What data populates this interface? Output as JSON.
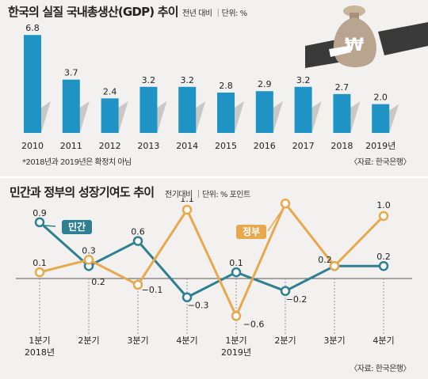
{
  "chart_data": [
    {
      "type": "bar",
      "title": "한국의 실질 국내총생산(GDP) 추이",
      "unit_note": "전년 대비 ｜단위: %",
      "categories": [
        "2010",
        "2011",
        "2012",
        "2013",
        "2014",
        "2015",
        "2016",
        "2017",
        "2018",
        "2019년"
      ],
      "values": [
        6.8,
        3.7,
        2.4,
        3.2,
        3.2,
        2.8,
        2.9,
        3.2,
        2.7,
        2.0
      ],
      "value_labels": [
        "6.8",
        "3.7",
        "2.4",
        "3.2",
        "3.2",
        "2.8",
        "2.9",
        "3.2",
        "2.7",
        "2.0"
      ],
      "footnote": "*2018년과 2019년은 확정치 아님",
      "source": "〈자료: 한국은행〉",
      "colors": {
        "bar": "#1f93c4",
        "shadow": "#c8c8c8"
      }
    },
    {
      "type": "line",
      "title": "민간과 정부의 성장기여도 추이",
      "unit_note": "전기대비 ｜단위: % 포인트",
      "categories": [
        "1분기",
        "2분기",
        "3분기",
        "4분기",
        "1분기",
        "2분기",
        "3분기",
        "4분기"
      ],
      "year_labels": [
        "2018년",
        "",
        "",
        "",
        "2019년",
        "",
        "",
        ""
      ],
      "series": [
        {
          "name": "민간",
          "values": [
            0.9,
            0.2,
            0.6,
            -0.3,
            0.1,
            -0.2,
            0.2,
            0.2
          ],
          "labels": [
            "0.9",
            "0.2",
            "0.6",
            "−0.3",
            "0.1",
            "−0.2",
            "0.2",
            "0.2"
          ],
          "color": "#2e7f90"
        },
        {
          "name": "정부",
          "values": [
            0.1,
            0.3,
            -0.1,
            1.1,
            -0.6,
            1.2,
            0.2,
            1.0
          ],
          "labels": [
            "0.1",
            "0.3",
            "−0.1",
            "1.1",
            "−0.6",
            "1.2",
            "",
            "1.0"
          ],
          "color": "#e8a84e"
        }
      ],
      "source": "〈자료: 한국은행〉"
    }
  ]
}
